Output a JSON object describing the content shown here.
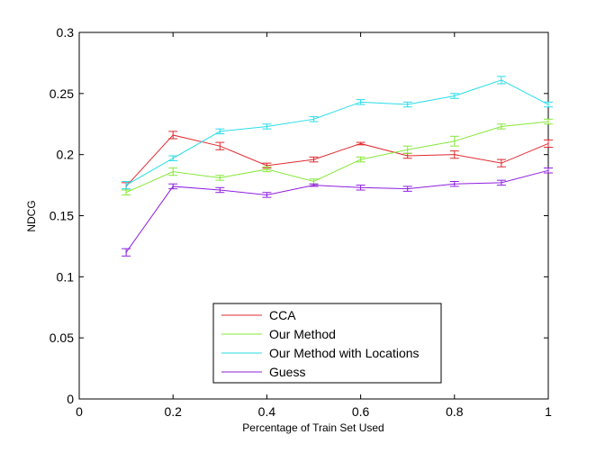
{
  "chart_data": {
    "type": "line",
    "title": "",
    "xlabel": "Percentage of Train Set Used",
    "ylabel": "NDCG",
    "xlim": [
      0,
      1
    ],
    "ylim": [
      0,
      0.3
    ],
    "xticks": [
      "0",
      "0.2",
      "0.4",
      "0.6",
      "0.8",
      "1"
    ],
    "yticks": [
      "0",
      "0.05",
      "0.1",
      "0.15",
      "0.2",
      "0.25",
      "0.3"
    ],
    "grid": false,
    "legend_position": "bottom-center",
    "x": [
      0.1,
      0.2,
      0.3,
      0.4,
      0.5,
      0.6,
      0.7,
      0.8,
      0.9,
      1.0
    ],
    "series": [
      {
        "name": "CCA",
        "color": "#e0292e",
        "values": [
          0.174,
          0.216,
          0.207,
          0.191,
          0.196,
          0.209,
          0.199,
          0.2,
          0.193,
          0.209
        ],
        "errors": [
          0.003,
          0.003,
          0.003,
          0.002,
          0.002,
          0.001,
          0.002,
          0.003,
          0.003,
          0.003
        ]
      },
      {
        "name": "Our Method",
        "color": "#86e83a",
        "values": [
          0.169,
          0.186,
          0.181,
          0.188,
          0.178,
          0.196,
          0.204,
          0.211,
          0.223,
          0.227
        ],
        "errors": [
          0.002,
          0.003,
          0.002,
          0.002,
          0.002,
          0.002,
          0.003,
          0.004,
          0.002,
          0.002
        ]
      },
      {
        "name": "Our Method with Locations",
        "color": "#29dcea",
        "values": [
          0.175,
          0.197,
          0.219,
          0.223,
          0.229,
          0.243,
          0.241,
          0.248,
          0.261,
          0.241
        ],
        "errors": [
          0.003,
          0.002,
          0.002,
          0.002,
          0.002,
          0.002,
          0.002,
          0.002,
          0.003,
          0.002
        ]
      },
      {
        "name": "Guess",
        "color": "#8e1fe2",
        "values": [
          0.12,
          0.174,
          0.171,
          0.167,
          0.175,
          0.173,
          0.172,
          0.176,
          0.177,
          0.187
        ],
        "errors": [
          0.003,
          0.002,
          0.002,
          0.002,
          0.001,
          0.002,
          0.002,
          0.002,
          0.002,
          0.002
        ]
      }
    ]
  }
}
